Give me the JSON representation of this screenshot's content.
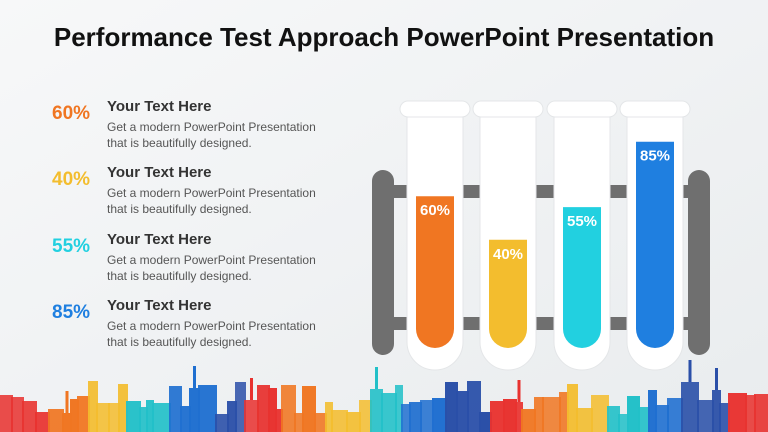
{
  "title": "Performance Test Approach PowerPoint Presentation",
  "items": [
    {
      "heading": "Your Text Here",
      "body_lines": [
        "Get a modern PowerPoint  Presentation",
        "that is beautifully designed."
      ],
      "value": 60,
      "value_label": "60%",
      "color": "#f07622"
    },
    {
      "heading": "Your Text Here",
      "body_lines": [
        "Get a modern PowerPoint  Presentation",
        "that is beautifully designed."
      ],
      "value": 40,
      "value_label": "40%",
      "color": "#f3bd2e"
    },
    {
      "heading": "Your Text Here",
      "body_lines": [
        "Get a modern PowerPoint  Presentation",
        "that is beautifully designed."
      ],
      "value": 55,
      "value_label": "55%",
      "color": "#22d0e0"
    },
    {
      "heading": "Your Text Here",
      "body_lines": [
        "Get a modern PowerPoint  Presentation",
        "that is beautifully designed."
      ],
      "value": 85,
      "value_label": "85%",
      "color": "#1f7fe0"
    }
  ]
}
